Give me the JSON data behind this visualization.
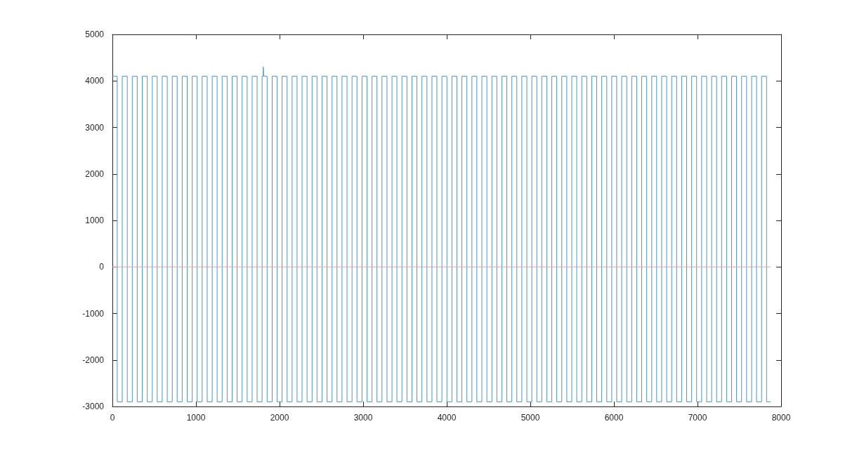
{
  "chart_data": {
    "type": "step",
    "xlim": [
      0,
      8000
    ],
    "xticks": [
      0,
      1000,
      2000,
      3000,
      4000,
      5000,
      6000,
      7000,
      8000
    ],
    "ylim": [
      -3000,
      5000
    ],
    "yticks": [
      -3000,
      -2000,
      -1000,
      0,
      1000,
      2000,
      3000,
      4000,
      5000
    ],
    "grid": false,
    "marker": "none",
    "line_style": "solid",
    "series": [
      {
        "color": "#4f93c0",
        "x": [
          0,
          58,
          118,
          178,
          238,
          297,
          357,
          417,
          477,
          536,
          596,
          656,
          716,
          775,
          835,
          895,
          955,
          1014,
          1074,
          1134,
          1194,
          1253,
          1313,
          1373,
          1433,
          1492,
          1552,
          1612,
          1672,
          1731,
          1791,
          1805,
          1810,
          1851,
          1911,
          1970,
          2030,
          2090,
          2150,
          2209,
          2269,
          2329,
          2389,
          2448,
          2508,
          2568,
          2628,
          2687,
          2747,
          2807,
          2867,
          2926,
          2986,
          3046,
          3106,
          3165,
          3225,
          3285,
          3345,
          3404,
          3464,
          3524,
          3584,
          3643,
          3703,
          3763,
          3823,
          3882,
          3942,
          4002,
          4062,
          4121,
          4181,
          4241,
          4301,
          4360,
          4420,
          4480,
          4540,
          4599,
          4659,
          4719,
          4779,
          4838,
          4898,
          4958,
          5018,
          5077,
          5137,
          5197,
          5257,
          5316,
          5376,
          5436,
          5496,
          5555,
          5615,
          5675,
          5735,
          5794,
          5854,
          5914,
          5974,
          6033,
          6093,
          6153,
          6213,
          6272,
          6332,
          6392,
          6452,
          6511,
          6571,
          6631,
          6691,
          6750,
          6810,
          6870,
          6930,
          6989,
          7049,
          7109,
          7169,
          7228,
          7288,
          7348,
          7408,
          7467,
          7527,
          7587,
          7647,
          7706,
          7766,
          7826,
          7870
        ],
        "values": [
          4100,
          -2900,
          4100,
          -2900,
          4100,
          -2900,
          4100,
          -2900,
          4100,
          -2900,
          4100,
          -2900,
          4100,
          -2900,
          4100,
          -2900,
          4100,
          -2900,
          4100,
          -2900,
          4100,
          -2900,
          4100,
          -2900,
          4100,
          -2900,
          4100,
          -2900,
          4100,
          -2900,
          4100,
          4300,
          4100,
          -2900,
          4100,
          -2900,
          4100,
          -2900,
          4100,
          -2900,
          4100,
          -2900,
          4100,
          -2900,
          4100,
          -2900,
          4100,
          -2900,
          4100,
          -2900,
          4100,
          -2900,
          4100,
          -2900,
          4100,
          -2900,
          4100,
          -2900,
          4100,
          -2900,
          4100,
          -2900,
          4100,
          -2900,
          4100,
          -2900,
          4100,
          -2900,
          4100,
          -2900,
          4100,
          -2900,
          4100,
          -2900,
          4100,
          -2900,
          4100,
          -2900,
          4100,
          -2900,
          4100,
          -2900,
          4100,
          -2900,
          4100,
          -2900,
          4100,
          -2900,
          4100,
          -2900,
          4100,
          -2900,
          4100,
          -2900,
          4100,
          -2900,
          4100,
          -2900,
          4100,
          -2900,
          4100,
          -2900,
          4100,
          -2900,
          4100,
          -2900,
          4100,
          -2900,
          4100,
          -2900,
          4100,
          -2900,
          4100,
          -2900,
          4100,
          -2900,
          4100,
          -2900,
          4100,
          -2900,
          4100,
          -2900,
          4100,
          -2900,
          4100,
          -2900,
          4100,
          -2900,
          4100,
          -2900,
          4100,
          -2900,
          4100,
          -2900,
          -2900
        ]
      },
      {
        "type": "line",
        "color": "#d8a8a8",
        "x": [
          0,
          7870
        ],
        "values": [
          0,
          0
        ]
      }
    ]
  }
}
